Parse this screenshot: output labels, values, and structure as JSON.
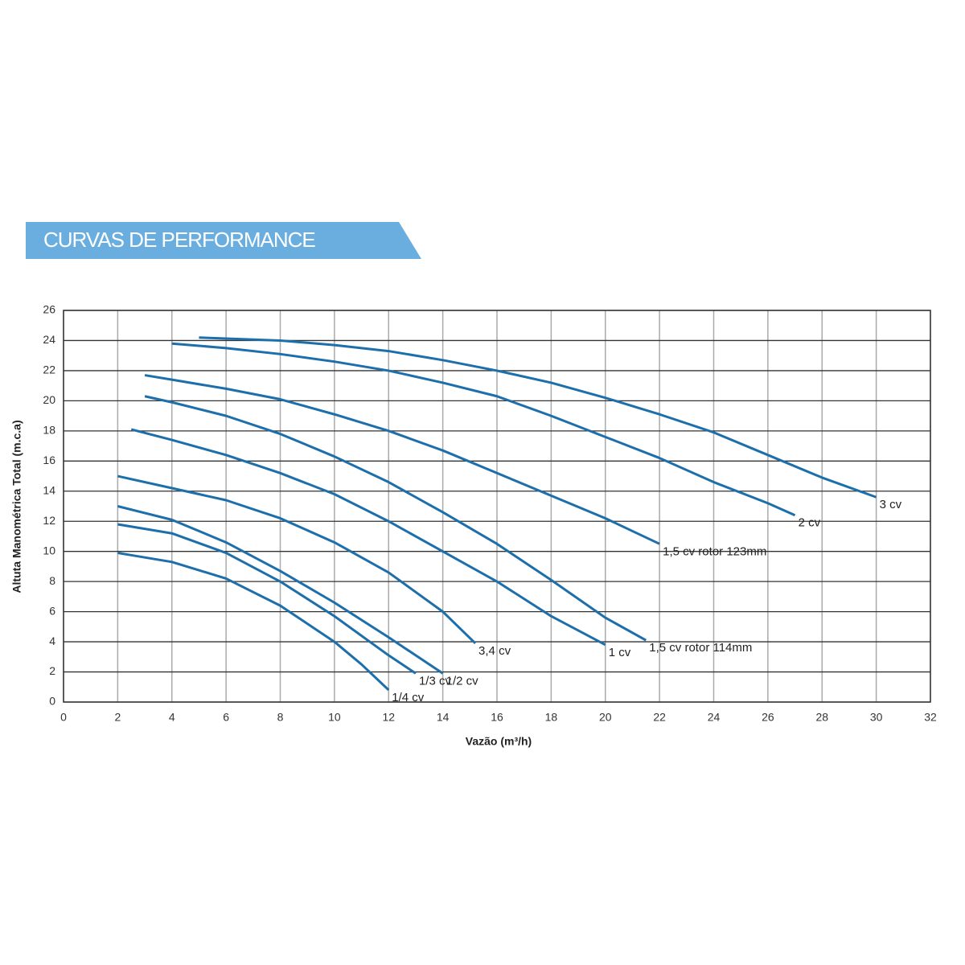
{
  "chart_data": {
    "type": "line",
    "title": "CURVAS DE PERFORMANCE",
    "x_label": "Vazão (m³/h)",
    "y_label": "Altuta Manométrica Total (m.c.a)",
    "xlim": [
      0,
      32
    ],
    "xticks": [
      0,
      2,
      4,
      6,
      8,
      10,
      12,
      14,
      16,
      18,
      20,
      22,
      24,
      26,
      28,
      30,
      32
    ],
    "ylim": [
      0,
      26
    ],
    "yticks": [
      0,
      2,
      4,
      6,
      8,
      10,
      12,
      14,
      16,
      18,
      20,
      22,
      24,
      26
    ],
    "grid": true,
    "series": [
      {
        "name": "1/4 cv",
        "color": "#1d6fab",
        "x": [
          2,
          4,
          6,
          8,
          10,
          11,
          12
        ],
        "values": [
          9.9,
          9.3,
          8.2,
          6.4,
          4.0,
          2.5,
          0.8
        ]
      },
      {
        "name": "1/3 cv",
        "color": "#1d6fab",
        "x": [
          2,
          4,
          6,
          8,
          10,
          12,
          13
        ],
        "values": [
          11.8,
          11.2,
          9.9,
          8.0,
          5.7,
          3.1,
          1.9
        ]
      },
      {
        "name": "1/2 cv",
        "color": "#1d6fab",
        "x": [
          2,
          4,
          6,
          8,
          10,
          12,
          14
        ],
        "values": [
          13.0,
          12.1,
          10.6,
          8.7,
          6.6,
          4.3,
          1.9
        ]
      },
      {
        "name": "3,4 cv",
        "color": "#1d6fab",
        "x": [
          2,
          4,
          6,
          8,
          10,
          12,
          14,
          15.2
        ],
        "values": [
          15.0,
          14.2,
          13.4,
          12.2,
          10.6,
          8.6,
          6.0,
          3.9
        ]
      },
      {
        "name": "1 cv",
        "color": "#1d6fab",
        "x": [
          2.5,
          4,
          6,
          8,
          10,
          12,
          14,
          16,
          18,
          20
        ],
        "values": [
          18.1,
          17.4,
          16.4,
          15.2,
          13.8,
          12.0,
          10.0,
          8.0,
          5.7,
          3.8
        ]
      },
      {
        "name": "1,5 cv rotor 114mm",
        "color": "#1d6fab",
        "x": [
          3,
          4,
          6,
          8,
          10,
          12,
          14,
          16,
          18,
          20,
          21.5
        ],
        "values": [
          20.3,
          19.9,
          19.0,
          17.8,
          16.3,
          14.6,
          12.6,
          10.5,
          8.1,
          5.6,
          4.1
        ]
      },
      {
        "name": "1,5 cv rotor 123mm",
        "color": "#1d6fab",
        "x": [
          3,
          4,
          6,
          8,
          10,
          12,
          14,
          16,
          18,
          20,
          22
        ],
        "values": [
          21.7,
          21.4,
          20.8,
          20.1,
          19.1,
          18.0,
          16.7,
          15.2,
          13.7,
          12.2,
          10.5
        ]
      },
      {
        "name": "2 cv",
        "color": "#1d6fab",
        "x": [
          4,
          6,
          8,
          10,
          12,
          14,
          16,
          18,
          20,
          22,
          24,
          26,
          27
        ],
        "values": [
          23.8,
          23.5,
          23.1,
          22.6,
          22.0,
          21.2,
          20.3,
          19.0,
          17.6,
          16.2,
          14.6,
          13.2,
          12.4
        ]
      },
      {
        "name": "3 cv",
        "color": "#1d6fab",
        "x": [
          5,
          8,
          10,
          12,
          14,
          16,
          18,
          20,
          22,
          24,
          26,
          28,
          30
        ],
        "values": [
          24.2,
          24.0,
          23.7,
          23.3,
          22.7,
          22.0,
          21.2,
          20.2,
          19.1,
          17.9,
          16.4,
          14.9,
          13.6
        ]
      }
    ]
  }
}
